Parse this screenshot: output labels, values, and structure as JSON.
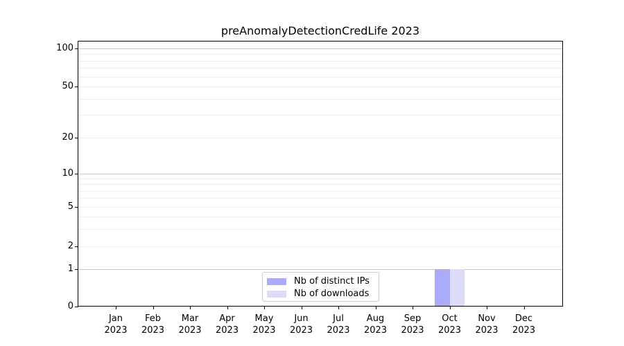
{
  "chart_data": {
    "type": "bar",
    "title": "preAnomalyDetectionCredLife 2023",
    "categories": [
      "Jan",
      "Feb",
      "Mar",
      "Apr",
      "May",
      "Jun",
      "Jul",
      "Aug",
      "Sep",
      "Oct",
      "Nov",
      "Dec"
    ],
    "category_year": "2023",
    "series": [
      {
        "name": "Nb of distinct IPs",
        "color": "#aaaaf8",
        "values": [
          0,
          0,
          0,
          0,
          0,
          0,
          0,
          0,
          0,
          1,
          0,
          0
        ]
      },
      {
        "name": "Nb of downloads",
        "color": "#dcdcf8",
        "values": [
          0,
          0,
          0,
          0,
          0,
          0,
          0,
          0,
          0,
          1,
          0,
          0
        ]
      }
    ],
    "yscale": "symlog",
    "ylim": [
      0,
      113
    ],
    "y_labeled_ticks": [
      100,
      50,
      20,
      10,
      5,
      2,
      1,
      0
    ],
    "y_major_gridlines": [
      100,
      10,
      1
    ],
    "y_minor_gridlines": [
      90,
      80,
      70,
      60,
      50,
      40,
      30,
      20,
      9,
      8,
      7,
      6,
      5,
      4,
      3,
      2
    ],
    "grid": true,
    "legend": {
      "position": "lower center",
      "entries": [
        "Nb of distinct IPs",
        "Nb of downloads"
      ]
    },
    "colors": {
      "grid_major": "#c8c8c8",
      "grid_minor": "#ededed",
      "axis": "#000000",
      "text": "#000000",
      "background": "#ffffff"
    }
  }
}
